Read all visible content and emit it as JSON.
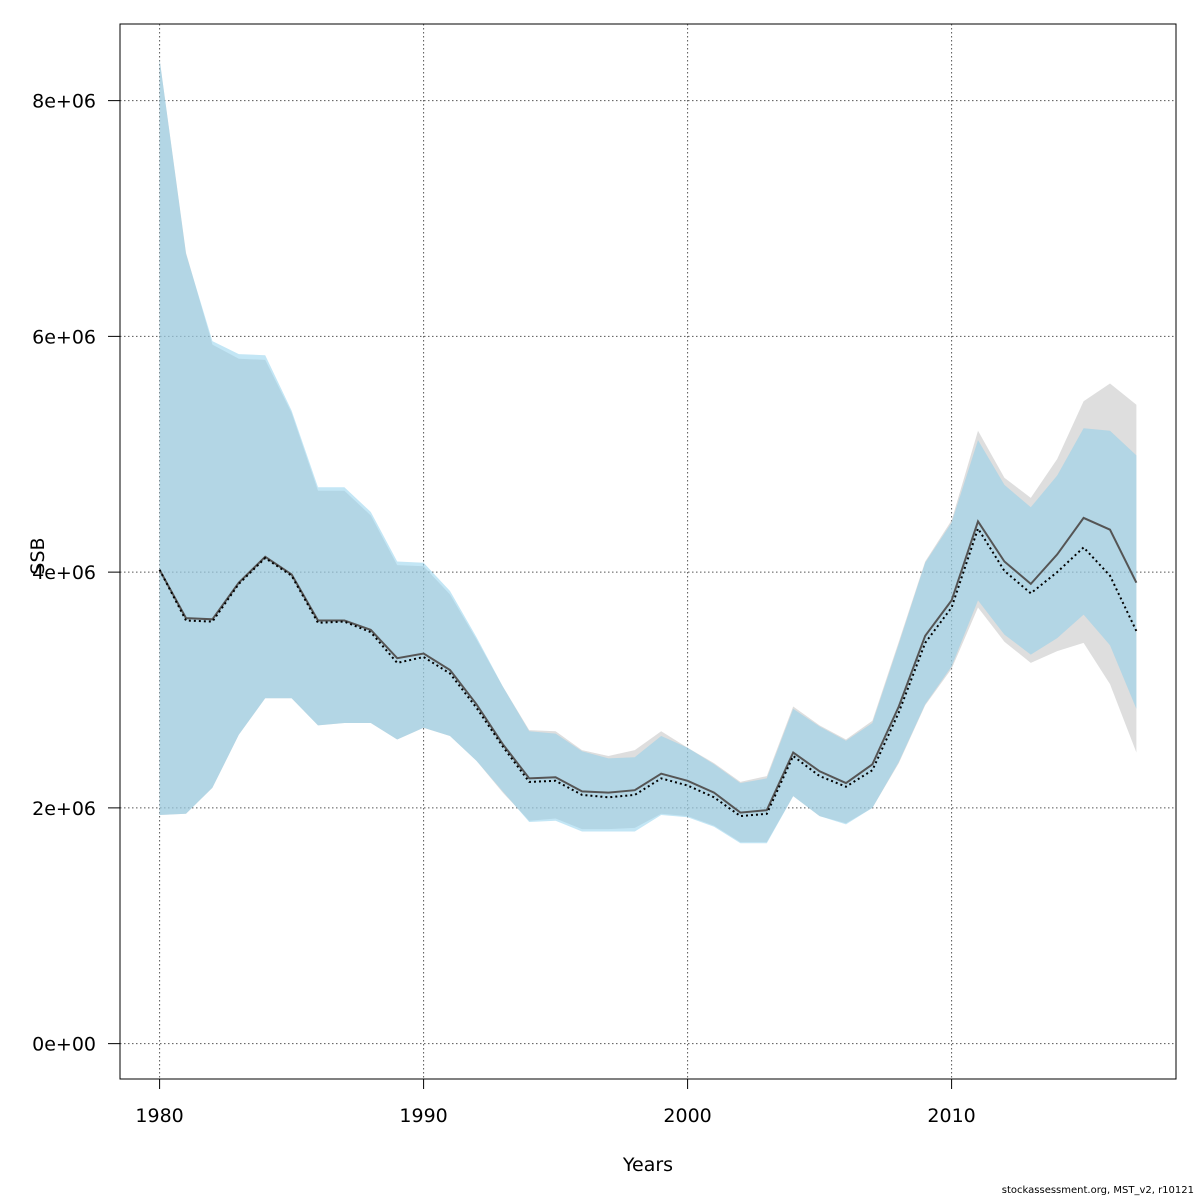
{
  "chart_data": {
    "type": "area",
    "xlabel": "Years",
    "ylabel": "SSB",
    "xlim": [
      1978.5,
      2018.5
    ],
    "ylim": [
      -300000,
      8650000
    ],
    "x_ticks": [
      1980,
      1990,
      2000,
      2010
    ],
    "y_ticks": [
      0,
      2000000,
      4000000,
      6000000,
      8000000
    ],
    "y_tick_labels": [
      "0e+00",
      "2e+06",
      "4e+06",
      "6e+06",
      "8e+06"
    ],
    "grid": true,
    "years": [
      1980,
      1981,
      1982,
      1983,
      1984,
      1985,
      1986,
      1987,
      1988,
      1989,
      1990,
      1991,
      1992,
      1993,
      1994,
      1995,
      1996,
      1997,
      1998,
      1999,
      2000,
      2001,
      2002,
      2003,
      2004,
      2005,
      2006,
      2007,
      2008,
      2009,
      2010,
      2011,
      2012,
      2013,
      2014,
      2015,
      2016,
      2017
    ],
    "series": [
      {
        "color": "#bebebe",
        "line_color": "#555555",
        "line_style": "solid",
        "values": [
          4020000,
          3610000,
          3600000,
          3910000,
          4130000,
          3980000,
          3590000,
          3590000,
          3510000,
          3270000,
          3310000,
          3170000,
          2880000,
          2540000,
          2250000,
          2260000,
          2140000,
          2130000,
          2150000,
          2290000,
          2230000,
          2130000,
          1960000,
          1980000,
          2470000,
          2310000,
          2210000,
          2370000,
          2860000,
          3460000,
          3760000,
          4430000,
          4090000,
          3900000,
          4150000,
          4460000,
          4360000,
          3910000
        ],
        "lower": [
          1940000,
          1950000,
          2170000,
          2620000,
          2930000,
          2930000,
          2700000,
          2720000,
          2720000,
          2580000,
          2680000,
          2610000,
          2400000,
          2130000,
          1890000,
          1910000,
          1820000,
          1820000,
          1830000,
          1950000,
          1930000,
          1850000,
          1710000,
          1710000,
          2100000,
          1930000,
          1870000,
          2000000,
          2380000,
          2870000,
          3180000,
          3700000,
          3410000,
          3230000,
          3330000,
          3400000,
          3050000,
          2470000
        ],
        "upper": [
          8350000,
          6710000,
          5930000,
          5810000,
          5800000,
          5350000,
          4690000,
          4690000,
          4480000,
          4060000,
          4050000,
          3810000,
          3430000,
          3030000,
          2660000,
          2650000,
          2490000,
          2440000,
          2490000,
          2650000,
          2510000,
          2380000,
          2220000,
          2270000,
          2860000,
          2700000,
          2580000,
          2740000,
          3410000,
          4090000,
          4440000,
          5200000,
          4800000,
          4630000,
          4960000,
          5450000,
          5600000,
          5420000
        ]
      },
      {
        "color": "#87ceeb",
        "line_color": "#000000",
        "line_style": "dotted",
        "values": [
          4020000,
          3590000,
          3580000,
          3900000,
          4120000,
          3970000,
          3570000,
          3580000,
          3490000,
          3230000,
          3280000,
          3140000,
          2850000,
          2520000,
          2220000,
          2230000,
          2110000,
          2090000,
          2110000,
          2250000,
          2190000,
          2090000,
          1930000,
          1950000,
          2440000,
          2270000,
          2180000,
          2320000,
          2810000,
          3400000,
          3700000,
          4370000,
          4010000,
          3820000,
          4000000,
          4210000,
          3970000,
          3500000
        ],
        "lower": [
          1940000,
          1950000,
          2170000,
          2620000,
          2930000,
          2930000,
          2700000,
          2720000,
          2720000,
          2580000,
          2680000,
          2610000,
          2400000,
          2140000,
          1880000,
          1890000,
          1800000,
          1800000,
          1800000,
          1940000,
          1920000,
          1840000,
          1700000,
          1700000,
          2100000,
          1930000,
          1860000,
          2000000,
          2390000,
          2880000,
          3200000,
          3760000,
          3470000,
          3300000,
          3440000,
          3640000,
          3380000,
          2840000
        ],
        "upper": [
          8350000,
          6700000,
          5960000,
          5850000,
          5840000,
          5370000,
          4720000,
          4720000,
          4510000,
          4090000,
          4080000,
          3840000,
          3450000,
          3030000,
          2650000,
          2630000,
          2480000,
          2420000,
          2430000,
          2610000,
          2510000,
          2370000,
          2210000,
          2250000,
          2840000,
          2690000,
          2570000,
          2720000,
          3390000,
          4080000,
          4420000,
          5120000,
          4740000,
          4550000,
          4820000,
          5220000,
          5200000,
          4990000
        ]
      }
    ]
  },
  "footer": "stockassessment.org, MST_v2, r10121"
}
